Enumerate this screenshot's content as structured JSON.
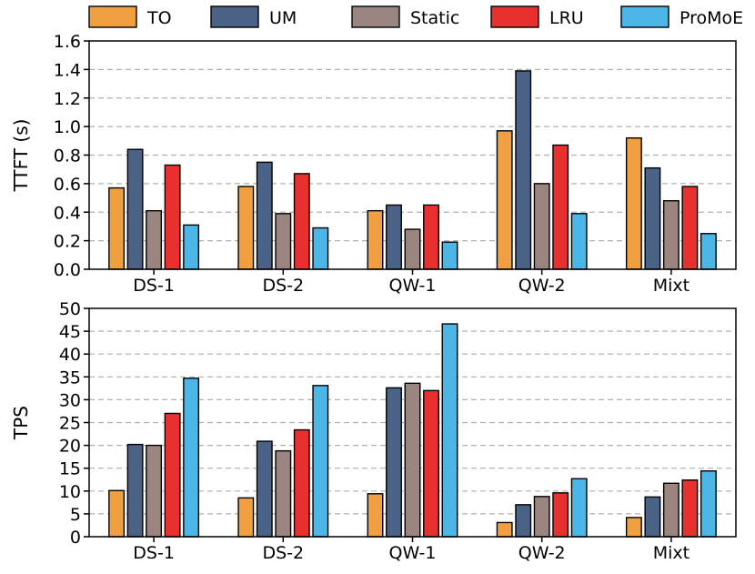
{
  "legend": [
    {
      "name": "TO",
      "color": "#f0a040"
    },
    {
      "name": "UM",
      "color": "#4a6286"
    },
    {
      "name": "Static",
      "color": "#9a8580"
    },
    {
      "name": "LRU",
      "color": "#e8312f"
    },
    {
      "name": "ProMoE",
      "color": "#4cb6e6"
    }
  ],
  "chart_data": [
    {
      "type": "bar",
      "title": "",
      "xlabel": "",
      "ylabel": "TTFT (s)",
      "ylim": [
        0,
        1.6
      ],
      "yticks": [
        0.0,
        0.2,
        0.4,
        0.6,
        0.8,
        1.0,
        1.2,
        1.4,
        1.6
      ],
      "ytick_labels": [
        "0.0",
        "0.2",
        "0.4",
        "0.6",
        "0.8",
        "1.0",
        "1.2",
        "1.4",
        "1.6"
      ],
      "grid": true,
      "categories": [
        "DS-1",
        "DS-2",
        "QW-1",
        "QW-2",
        "Mixt"
      ],
      "series": [
        {
          "name": "TO",
          "values": [
            0.57,
            0.58,
            0.41,
            0.97,
            0.92
          ]
        },
        {
          "name": "UM",
          "values": [
            0.84,
            0.75,
            0.45,
            1.39,
            0.71
          ]
        },
        {
          "name": "Static",
          "values": [
            0.41,
            0.39,
            0.28,
            0.6,
            0.48
          ]
        },
        {
          "name": "LRU",
          "values": [
            0.73,
            0.67,
            0.45,
            0.87,
            0.58
          ]
        },
        {
          "name": "ProMoE",
          "values": [
            0.31,
            0.29,
            0.19,
            0.39,
            0.25
          ]
        }
      ]
    },
    {
      "type": "bar",
      "title": "",
      "xlabel": "",
      "ylabel": "TPS",
      "ylim": [
        0,
        50
      ],
      "yticks": [
        0,
        5,
        10,
        15,
        20,
        25,
        30,
        35,
        40,
        45,
        50
      ],
      "ytick_labels": [
        "0",
        "5",
        "10",
        "15",
        "20",
        "25",
        "30",
        "35",
        "40",
        "45",
        "50"
      ],
      "grid": true,
      "categories": [
        "DS-1",
        "DS-2",
        "QW-1",
        "QW-2",
        "Mixt"
      ],
      "series": [
        {
          "name": "TO",
          "values": [
            10.1,
            8.5,
            9.4,
            3.1,
            4.2
          ]
        },
        {
          "name": "UM",
          "values": [
            20.2,
            20.9,
            32.6,
            7.0,
            8.7
          ]
        },
        {
          "name": "Static",
          "values": [
            20.0,
            18.8,
            33.6,
            8.8,
            11.7
          ]
        },
        {
          "name": "LRU",
          "values": [
            27.0,
            23.4,
            32.0,
            9.6,
            12.4
          ]
        },
        {
          "name": "ProMoE",
          "values": [
            34.7,
            33.1,
            46.6,
            12.7,
            14.4
          ]
        }
      ]
    }
  ]
}
